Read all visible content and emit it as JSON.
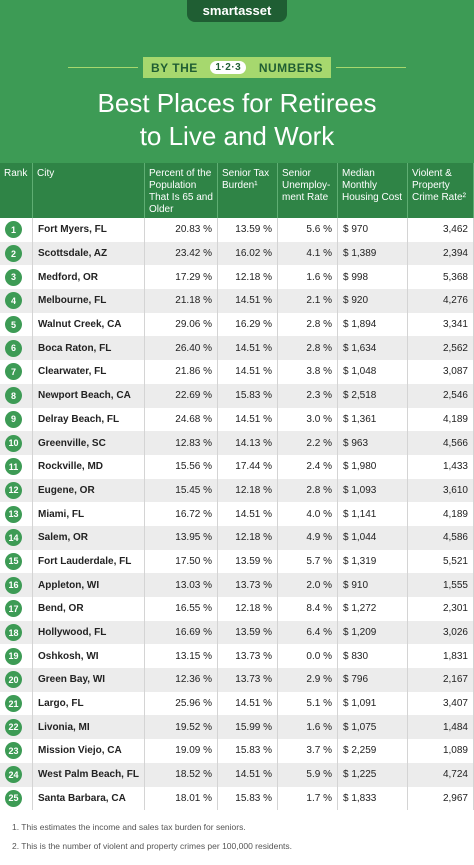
{
  "header": {
    "logo": "smartasset",
    "banner": [
      "BY THE",
      "1·2·3",
      "NUMBERS"
    ],
    "title": [
      "Best Places for Retirees",
      "to Live and Work"
    ]
  },
  "table": {
    "columns": [
      "Rank",
      "City",
      "Percent of the Population That Is 65 and Older",
      "Senior Tax Burden¹",
      "Senior Unemploy-ment Rate",
      "Median Monthly Housing Cost",
      "Violent & Property Crime Rate²"
    ],
    "rows": [
      [
        "1",
        "Fort Myers, FL",
        "20.83 %",
        "13.59 %",
        "5.6 %",
        "$ 970",
        "3,462"
      ],
      [
        "2",
        "Scottsdale, AZ",
        "23.42 %",
        "16.02 %",
        "4.1 %",
        "$ 1,389",
        "2,394"
      ],
      [
        "3",
        "Medford, OR",
        "17.29 %",
        "12.18 %",
        "1.6 %",
        "$ 998",
        "5,368"
      ],
      [
        "4",
        "Melbourne, FL",
        "21.18 %",
        "14.51 %",
        "2.1 %",
        "$ 920",
        "4,276"
      ],
      [
        "5",
        "Walnut Creek, CA",
        "29.06 %",
        "16.29 %",
        "2.8 %",
        "$ 1,894",
        "3,341"
      ],
      [
        "6",
        "Boca Raton, FL",
        "26.40 %",
        "14.51 %",
        "2.8 %",
        "$ 1,634",
        "2,562"
      ],
      [
        "7",
        "Clearwater, FL",
        "21.86 %",
        "14.51 %",
        "3.8 %",
        "$ 1,048",
        "3,087"
      ],
      [
        "8",
        "Newport Beach, CA",
        "22.69 %",
        "15.83 %",
        "2.3 %",
        "$ 2,518",
        "2,546"
      ],
      [
        "9",
        "Delray Beach, FL",
        "24.68 %",
        "14.51 %",
        "3.0 %",
        "$ 1,361",
        "4,189"
      ],
      [
        "10",
        "Greenville, SC",
        "12.83 %",
        "14.13 %",
        "2.2 %",
        "$ 963",
        "4,566"
      ],
      [
        "11",
        "Rockville, MD",
        "15.56 %",
        "17.44 %",
        "2.4 %",
        "$ 1,980",
        "1,433"
      ],
      [
        "12",
        "Eugene, OR",
        "15.45 %",
        "12.18 %",
        "2.8 %",
        "$ 1,093",
        "3,610"
      ],
      [
        "13",
        "Miami, FL",
        "16.72 %",
        "14.51 %",
        "4.0 %",
        "$ 1,141",
        "4,189"
      ],
      [
        "14",
        "Salem, OR",
        "13.95 %",
        "12.18 %",
        "4.9 %",
        "$ 1,044",
        "4,586"
      ],
      [
        "15",
        "Fort Lauderdale, FL",
        "17.50 %",
        "13.59 %",
        "5.7 %",
        "$ 1,319",
        "5,521"
      ],
      [
        "16",
        "Appleton, WI",
        "13.03 %",
        "13.73 %",
        "2.0 %",
        "$ 910",
        "1,555"
      ],
      [
        "17",
        "Bend, OR",
        "16.55 %",
        "12.18 %",
        "8.4 %",
        "$ 1,272",
        "2,301"
      ],
      [
        "18",
        "Hollywood, FL",
        "16.69 %",
        "13.59 %",
        "6.4 %",
        "$ 1,209",
        "3,026"
      ],
      [
        "19",
        "Oshkosh, WI",
        "13.15 %",
        "13.73 %",
        "0.0 %",
        "$ 830",
        "1,831"
      ],
      [
        "20",
        "Green Bay, WI",
        "12.36 %",
        "13.73 %",
        "2.9 %",
        "$ 796",
        "2,167"
      ],
      [
        "21",
        "Largo, FL",
        "25.96 %",
        "14.51 %",
        "5.1 %",
        "$ 1,091",
        "3,407"
      ],
      [
        "22",
        "Livonia, MI",
        "19.52 %",
        "15.99 %",
        "1.6 %",
        "$ 1,075",
        "1,484"
      ],
      [
        "23",
        "Mission Viejo, CA",
        "19.09 %",
        "15.83 %",
        "3.7 %",
        "$ 2,259",
        "1,089"
      ],
      [
        "24",
        "West Palm Beach, FL",
        "18.52 %",
        "14.51 %",
        "5.9 %",
        "$ 1,225",
        "4,724"
      ],
      [
        "25",
        "Santa Barbara, CA",
        "18.01 %",
        "15.83 %",
        "1.7 %",
        "$ 1,833",
        "2,967"
      ]
    ]
  },
  "footnotes": [
    "1.  This estimates the income and sales tax burden for seniors.",
    "2.  This is the number of violent and property crimes per 100,000 residents."
  ]
}
